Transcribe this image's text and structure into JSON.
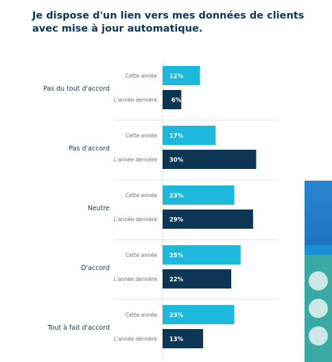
{
  "title": "Je dispose d'un lien vers mes données de clients avec mise à jour automatique.",
  "colors": {
    "this_year": "#1cb9dd",
    "last_year": "#0d3554",
    "title": "#0d3554",
    "label": "#0d3554",
    "sublabel": "#5d6c78",
    "separator": "#dde2e6"
  },
  "chart_data": {
    "type": "bar",
    "orientation": "horizontal",
    "title": "Je dispose d'un lien vers mes données de clients avec mise à jour automatique.",
    "categories": [
      "Pas du tout d'accord",
      "Pas d'accord",
      "Neutre",
      "D'accord",
      "Tout à fait d'accord"
    ],
    "series": [
      {
        "name": "Cette année",
        "values": [
          12,
          17,
          23,
          25,
          23
        ],
        "labels": [
          "12%",
          "17%",
          "23%",
          "25%",
          "23%"
        ]
      },
      {
        "name": "L'année dernière",
        "values": [
          6,
          30,
          29,
          22,
          13
        ],
        "labels": [
          "6%",
          "30%",
          "29%",
          "22%",
          "13%"
        ]
      }
    ],
    "unit": "%",
    "grid": false,
    "legend": "none"
  }
}
